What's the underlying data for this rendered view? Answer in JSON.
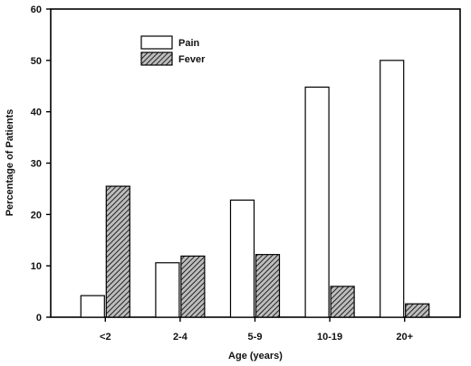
{
  "chart_data": {
    "type": "bar",
    "title": "",
    "xlabel": "Age (years)",
    "ylabel": "Percentage of Patients",
    "categories": [
      "<2",
      "2-4",
      "5-9",
      "10-19",
      "20+"
    ],
    "ylim": [
      0,
      60
    ],
    "yticks": [
      0,
      10,
      20,
      30,
      40,
      50,
      60
    ],
    "grid": false,
    "legend_position": "top-left",
    "series": [
      {
        "name": "Pain",
        "values": [
          4.2,
          10.6,
          22.8,
          44.8,
          50.0
        ],
        "fill": "#ffffff",
        "pattern": "none"
      },
      {
        "name": "Fever",
        "values": [
          25.5,
          11.9,
          12.2,
          6.0,
          2.6
        ],
        "fill": "#8a8a8a",
        "pattern": "diagonal-hatch"
      }
    ]
  }
}
